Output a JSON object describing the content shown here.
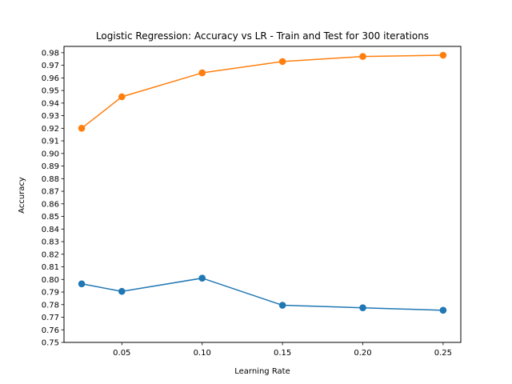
{
  "chart_data": {
    "type": "line",
    "title": "Logistic Regression: Accuracy vs LR - Train and Test for 300 iterations",
    "xlabel": "Learning Rate",
    "ylabel": "Accuracy",
    "xlim": [
      0.014,
      0.261
    ],
    "ylim": [
      0.75,
      0.985
    ],
    "x_ticks": [
      "0.05",
      "0.10",
      "0.15",
      "0.20",
      "0.25"
    ],
    "y_ticks": [
      "0.75",
      "0.76",
      "0.77",
      "0.78",
      "0.79",
      "0.80",
      "0.81",
      "0.82",
      "0.83",
      "0.84",
      "0.85",
      "0.86",
      "0.87",
      "0.88",
      "0.89",
      "0.90",
      "0.91",
      "0.92",
      "0.93",
      "0.94",
      "0.95",
      "0.96",
      "0.97",
      "0.98"
    ],
    "grid": false,
    "legend": "none",
    "x": [
      0.025,
      0.05,
      0.1,
      0.15,
      0.2,
      0.25
    ],
    "series": [
      {
        "color": "#1f77b4",
        "values": [
          0.7965,
          0.7905,
          0.801,
          0.7795,
          0.7775,
          0.7755
        ]
      },
      {
        "color": "#ff7f0e",
        "values": [
          0.92,
          0.945,
          0.964,
          0.973,
          0.977,
          0.978
        ]
      }
    ]
  }
}
